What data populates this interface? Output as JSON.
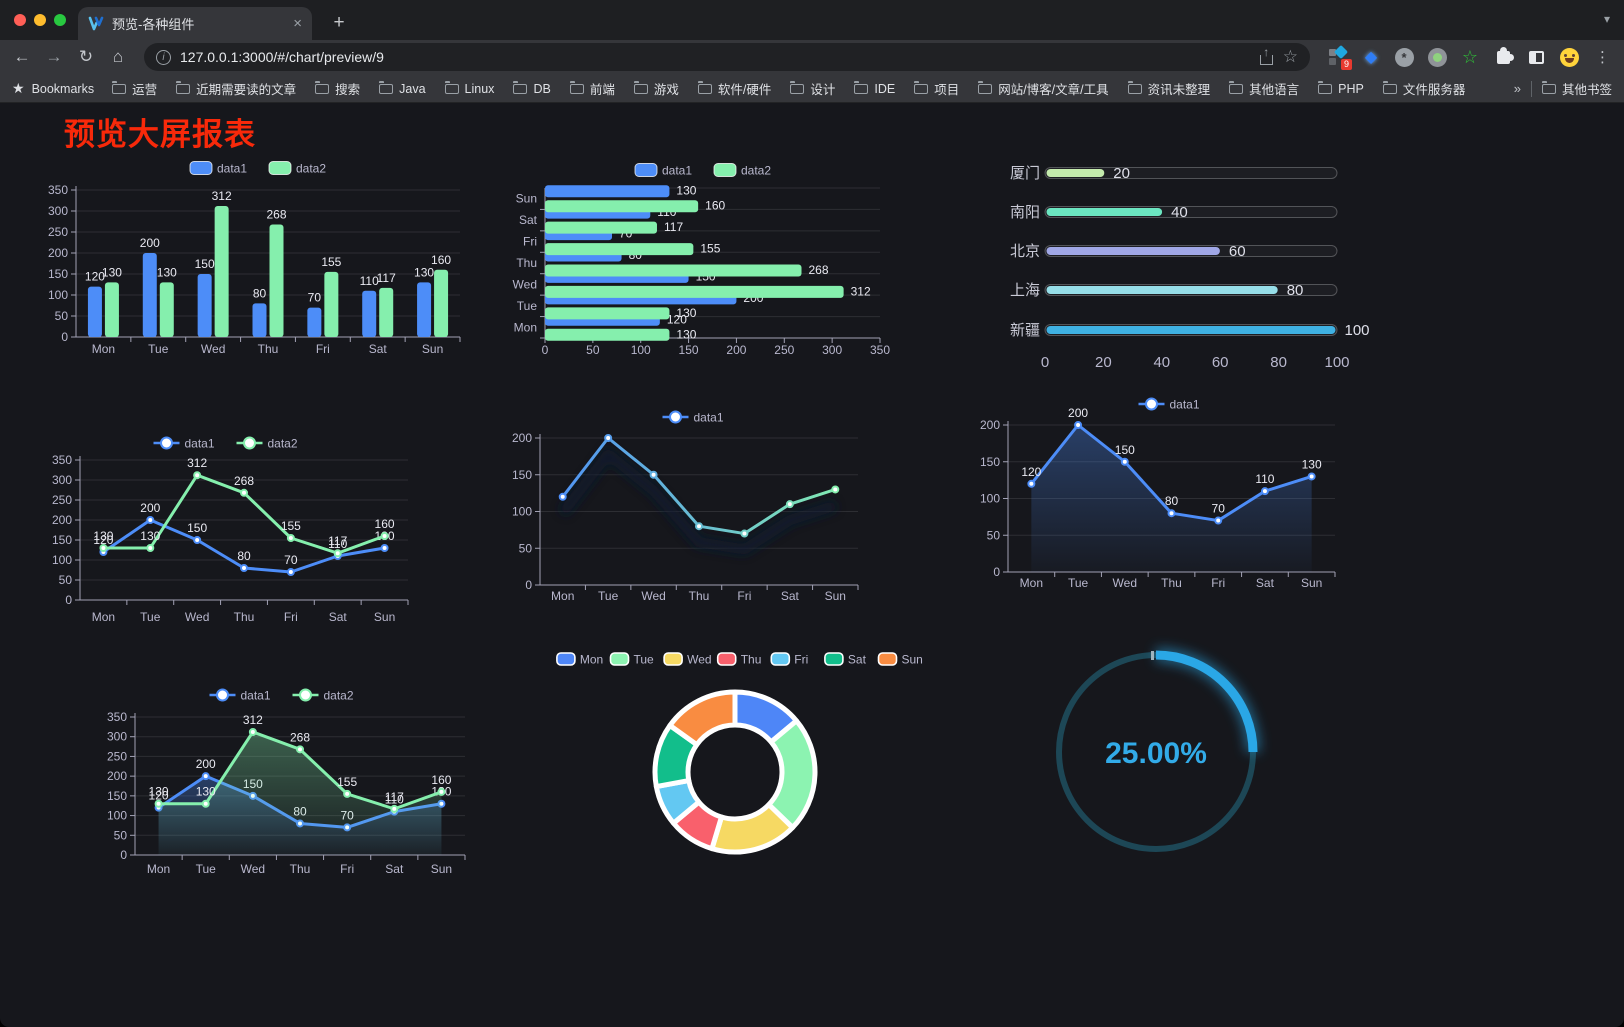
{
  "browser": {
    "tab_title": "预览-各种组件",
    "url": "127.0.0.1:3000/#/chart/preview/9",
    "extension_badge": "9",
    "bookmarks_root": "Bookmarks",
    "bookmarks": [
      "运营",
      "近期需要读的文章",
      "搜索",
      "Java",
      "Linux",
      "DB",
      "前端",
      "游戏",
      "软件/硬件",
      "设计",
      "IDE",
      "项目",
      "网站/博客/文章/工具",
      "资讯未整理",
      "其他语言",
      "PHP",
      "文件服务器"
    ],
    "other_bookmarks": "其他书签",
    "icons": {
      "back": "←",
      "forward": "→",
      "reload": "↻",
      "home": "⌂",
      "share_arrow": "↑",
      "star": "☆",
      "menu": "⋮",
      "overflow": "»",
      "bookmark_star": "★",
      "close": "×",
      "new_tab": "+",
      "tab_chevron": "▾",
      "info": "i"
    }
  },
  "page": {
    "title": "预览大屏报表",
    "title_color": "#f8290a",
    "background": "#16171c"
  },
  "theme": {
    "axis_line": "#a2a2b5",
    "tick_text": "#b9b8ce",
    "grid_line": "rgba(255,255,255,0.10)",
    "data_label": "#eaeaf2"
  },
  "chart_data": [
    {
      "id": "c1",
      "type": "bar",
      "legend": [
        "data1",
        "data2"
      ],
      "categories": [
        "Mon",
        "Tue",
        "Wed",
        "Thu",
        "Fri",
        "Sat",
        "Sun"
      ],
      "series": [
        {
          "name": "data1",
          "color": "#4d8df8",
          "values": [
            120,
            200,
            150,
            80,
            70,
            110,
            130
          ]
        },
        {
          "name": "data2",
          "color": "#85efad",
          "values": [
            130,
            130,
            312,
            268,
            155,
            117,
            160
          ]
        }
      ],
      "ylim": [
        0,
        350
      ],
      "ystep": 50,
      "labels": true,
      "grid": true,
      "legend_position": "top"
    },
    {
      "id": "c2",
      "type": "hbar",
      "legend": [
        "data1",
        "data2"
      ],
      "categories": [
        "Mon",
        "Tue",
        "Wed",
        "Thu",
        "Fri",
        "Sat",
        "Sun"
      ],
      "series": [
        {
          "name": "data1",
          "color": "#4d8df8",
          "values": [
            120,
            200,
            150,
            80,
            70,
            110,
            130
          ]
        },
        {
          "name": "data2",
          "color": "#85efad",
          "values": [
            130,
            130,
            312,
            268,
            155,
            117,
            160
          ]
        }
      ],
      "xlim": [
        0,
        350
      ],
      "xstep": 50,
      "labels": true,
      "grid": true,
      "legend_position": "top"
    },
    {
      "id": "c3",
      "type": "progress",
      "xlim": [
        0,
        100
      ],
      "xticks": [
        0,
        20,
        40,
        60,
        80,
        100
      ],
      "rows": [
        {
          "label": "厦门",
          "value": 20,
          "color": "#c4ebad"
        },
        {
          "label": "南阳",
          "value": 40,
          "color": "#6be6c1"
        },
        {
          "label": "北京",
          "value": 60,
          "color": "#a0a7e6"
        },
        {
          "label": "上海",
          "value": 80,
          "color": "#96dee8"
        },
        {
          "label": "新疆",
          "value": 100,
          "color": "#3fb1e3"
        }
      ]
    },
    {
      "id": "c4",
      "type": "line",
      "legend": [
        "data1",
        "data2"
      ],
      "categories": [
        "Mon",
        "Tue",
        "Wed",
        "Thu",
        "Fri",
        "Sat",
        "Sun"
      ],
      "series": [
        {
          "name": "data1",
          "color": "#4d8df8",
          "values": [
            120,
            200,
            150,
            80,
            70,
            110,
            130
          ]
        },
        {
          "name": "data2",
          "color": "#85efad",
          "values": [
            130,
            130,
            312,
            268,
            155,
            117,
            160
          ]
        }
      ],
      "ylim": [
        0,
        350
      ],
      "ystep": 50,
      "labels": true,
      "grid": true,
      "legend_position": "top"
    },
    {
      "id": "c5",
      "type": "line",
      "legend": [
        "data1"
      ],
      "categories": [
        "Mon",
        "Tue",
        "Wed",
        "Thu",
        "Fri",
        "Sat",
        "Sun"
      ],
      "series": [
        {
          "name": "data1",
          "color": "#4d8df8",
          "color2": "#85efad",
          "gradient": true,
          "shadow": true,
          "values": [
            120,
            200,
            150,
            80,
            70,
            110,
            130
          ]
        }
      ],
      "ylim": [
        0,
        200
      ],
      "ystep": 50,
      "labels": false,
      "grid": true,
      "legend_position": "top"
    },
    {
      "id": "c6",
      "type": "line",
      "legend": [
        "data1"
      ],
      "categories": [
        "Mon",
        "Tue",
        "Wed",
        "Thu",
        "Fri",
        "Sat",
        "Sun"
      ],
      "series": [
        {
          "name": "data1",
          "color": "#4d8df8",
          "area": true,
          "values": [
            120,
            200,
            150,
            80,
            70,
            110,
            130
          ]
        }
      ],
      "ylim": [
        0,
        200
      ],
      "ystep": 50,
      "labels": true,
      "grid": true,
      "legend_position": "top"
    },
    {
      "id": "c7",
      "type": "line",
      "legend": [
        "data1",
        "data2"
      ],
      "categories": [
        "Mon",
        "Tue",
        "Wed",
        "Thu",
        "Fri",
        "Sat",
        "Sun"
      ],
      "series": [
        {
          "name": "data1",
          "color": "#4d8df8",
          "area": true,
          "values": [
            120,
            200,
            150,
            80,
            70,
            110,
            130
          ]
        },
        {
          "name": "data2",
          "color": "#85efad",
          "area": true,
          "values": [
            130,
            130,
            312,
            268,
            155,
            117,
            160
          ]
        }
      ],
      "ylim": [
        0,
        350
      ],
      "ystep": 50,
      "labels": true,
      "grid": true,
      "legend_position": "top"
    },
    {
      "id": "c8",
      "type": "pie",
      "inner_ratio": 0.59,
      "legend_position": "top",
      "slices": [
        {
          "label": "Mon",
          "value": 120,
          "color": "#4e86f7"
        },
        {
          "label": "Tue",
          "value": 200,
          "color": "#8cf3b1"
        },
        {
          "label": "Wed",
          "value": 150,
          "color": "#f6d963"
        },
        {
          "label": "Thu",
          "value": 80,
          "color": "#f9606c"
        },
        {
          "label": "Fri",
          "value": 70,
          "color": "#63c8f2"
        },
        {
          "label": "Sat",
          "value": 110,
          "color": "#12be8b"
        },
        {
          "label": "Sun",
          "value": 130,
          "color": "#f98c41"
        }
      ]
    },
    {
      "id": "c9",
      "type": "gauge",
      "value_label": "25.00%",
      "percent": 25,
      "color": "#2aa7e6",
      "track_color": "#1d4756",
      "text_color": "#32abe8"
    }
  ]
}
